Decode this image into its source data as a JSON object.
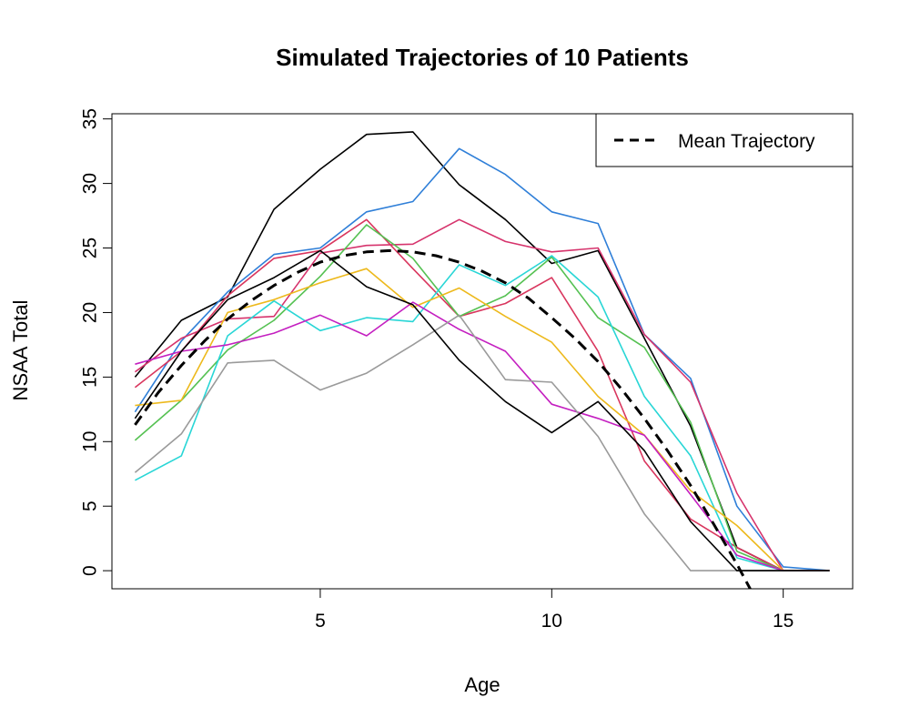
{
  "chart_data": {
    "type": "line",
    "title": "Simulated Trajectories of 10 Patients",
    "xlabel": "Age",
    "ylabel": "NSAA Total",
    "xlim": [
      0.5,
      16.5
    ],
    "ylim": [
      -1.4,
      35.4
    ],
    "xticks": [
      5,
      10,
      15
    ],
    "yticks": [
      0,
      5,
      10,
      15,
      20,
      25,
      30,
      35
    ],
    "grid": false,
    "legend": {
      "position": "top-right",
      "entries": [
        "Mean Trajectory"
      ]
    },
    "x": [
      1,
      2,
      3,
      4,
      5,
      6,
      7,
      8,
      9,
      10,
      11,
      12,
      13,
      14,
      15,
      16
    ],
    "series": [
      {
        "color": "#000000",
        "values": [
          15.0,
          19.4,
          21.2,
          28.0,
          31.1,
          33.8,
          34.0,
          29.9,
          27.2,
          23.8,
          24.8,
          18.0,
          11.2,
          1.8,
          0.0,
          0.0
        ]
      },
      {
        "color": "#2F7FD8",
        "values": [
          12.3,
          17.8,
          21.6,
          24.5,
          25.0,
          27.8,
          28.6,
          32.7,
          30.7,
          27.8,
          26.9,
          18.3,
          14.9,
          5.0,
          0.3,
          0.0
        ]
      },
      {
        "color": "#D9365E",
        "values": [
          14.2,
          17.0,
          21.3,
          24.2,
          24.8,
          27.2,
          23.4,
          19.7,
          20.7,
          22.7,
          17.0,
          8.5,
          4.0,
          1.8,
          0.0,
          0.0
        ]
      },
      {
        "color": "#D6336C",
        "values": [
          15.4,
          18.0,
          19.5,
          19.7,
          24.6,
          25.2,
          25.3,
          27.2,
          25.5,
          24.7,
          25.0,
          18.3,
          14.6,
          6.0,
          0.0,
          0.0
        ]
      },
      {
        "color": "#55C152",
        "values": [
          10.1,
          13.2,
          17.1,
          19.4,
          22.8,
          26.8,
          24.2,
          19.7,
          21.3,
          24.3,
          19.6,
          17.3,
          11.5,
          1.5,
          0.0,
          0.0
        ]
      },
      {
        "color": "#29D6D6",
        "values": [
          7.0,
          8.9,
          18.2,
          20.9,
          18.6,
          19.6,
          19.3,
          23.7,
          22.1,
          24.4,
          21.2,
          13.5,
          8.9,
          1.0,
          0.0,
          0.0
        ]
      },
      {
        "color": "#EDB91C",
        "values": [
          12.8,
          13.2,
          20.0,
          21.0,
          22.3,
          23.4,
          20.4,
          21.9,
          19.7,
          17.7,
          13.5,
          10.5,
          6.2,
          3.5,
          0.0,
          0.0
        ]
      },
      {
        "color": "#C41FC0",
        "values": [
          16.0,
          17.0,
          17.5,
          18.4,
          19.8,
          18.2,
          20.8,
          18.7,
          17.0,
          12.9,
          11.8,
          10.5,
          5.9,
          1.2,
          0.0,
          0.0
        ]
      },
      {
        "color": "#9A9A9A",
        "values": [
          7.6,
          10.6,
          16.1,
          16.3,
          14.0,
          15.3,
          17.5,
          19.8,
          14.8,
          14.6,
          10.4,
          4.4,
          0.0,
          0.0,
          0.0,
          0.0
        ]
      },
      {
        "color": "#000000",
        "values": [
          11.8,
          17.0,
          21.0,
          22.7,
          24.8,
          22.0,
          20.6,
          16.3,
          13.1,
          10.7,
          13.1,
          9.3,
          3.8,
          0.0,
          0.0,
          0.0
        ]
      }
    ],
    "mean_trajectory": {
      "name": "Mean Trajectory",
      "color": "#000000",
      "dashed": true,
      "x": [
        1,
        1.5,
        2,
        2.5,
        3,
        3.5,
        4,
        4.5,
        5,
        5.5,
        6,
        6.5,
        7,
        7.5,
        8,
        8.5,
        9,
        9.5,
        10,
        10.5,
        11,
        11.5,
        12,
        12.5,
        13,
        13.5,
        14,
        14.3
      ],
      "values": [
        11.3,
        13.8,
        15.9,
        17.8,
        19.5,
        20.9,
        22.1,
        23.1,
        23.9,
        24.4,
        24.7,
        24.8,
        24.7,
        24.4,
        23.9,
        23.2,
        22.3,
        21.1,
        19.6,
        18.0,
        16.2,
        14.1,
        11.8,
        9.3,
        6.6,
        3.6,
        0.5,
        -1.5
      ]
    }
  }
}
